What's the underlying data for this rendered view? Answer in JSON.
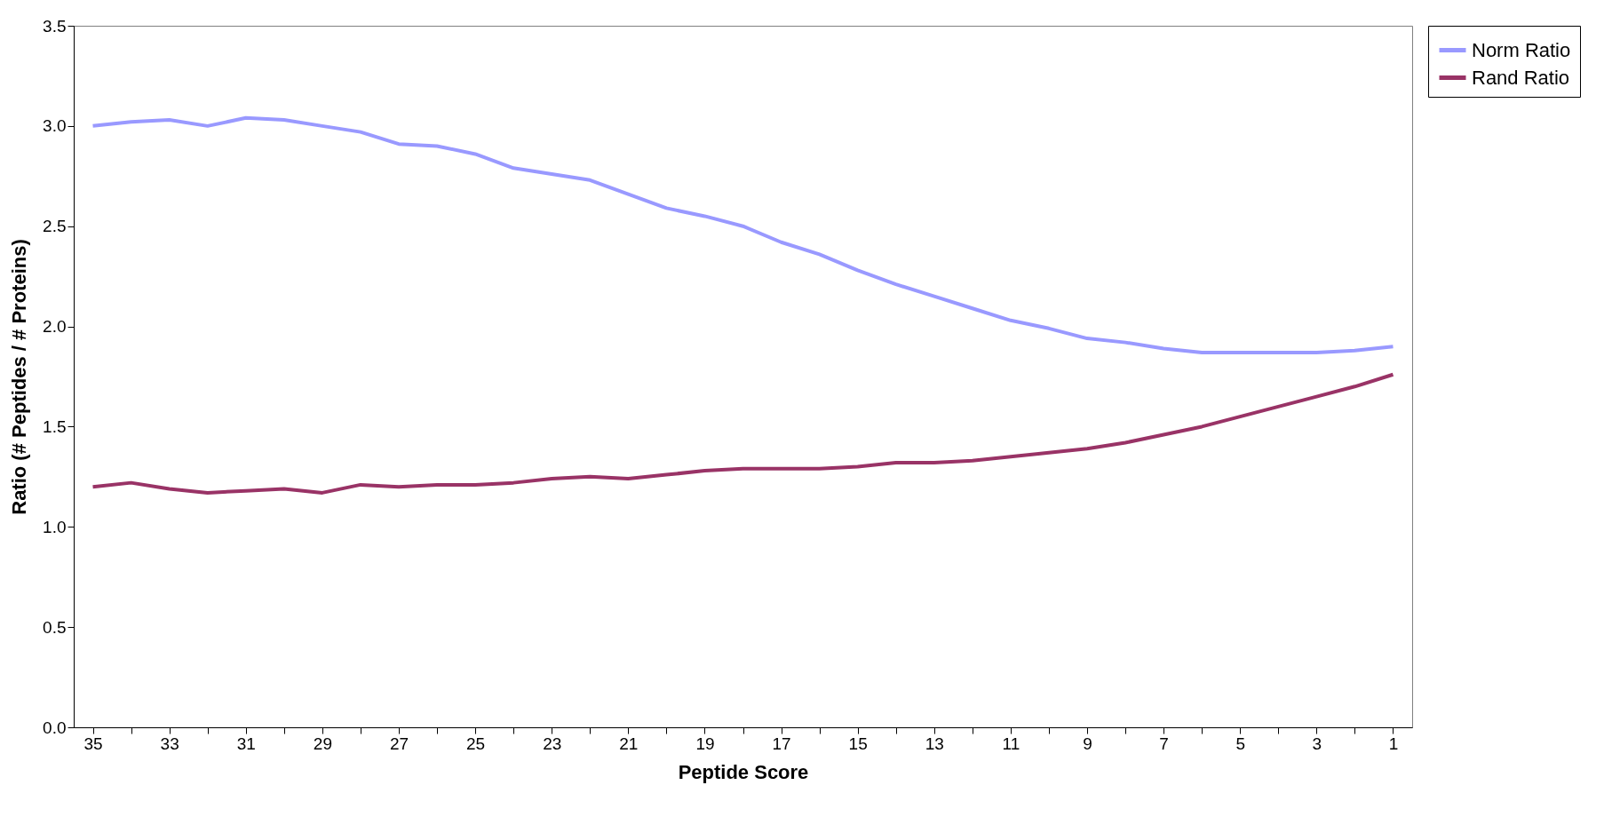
{
  "chart_data": {
    "type": "line",
    "xlabel": "Peptide Score",
    "ylabel": "Ratio (# Peptides / # Proteins)",
    "categories": [
      "35",
      null,
      "33",
      null,
      "31",
      null,
      "29",
      null,
      "27",
      null,
      "25",
      null,
      "23",
      null,
      "21",
      null,
      "19",
      null,
      "17",
      null,
      "15",
      null,
      "13",
      null,
      "11",
      null,
      "9",
      null,
      "7",
      null,
      "5",
      null,
      "3",
      null,
      "1"
    ],
    "series": [
      {
        "name": "Norm Ratio",
        "color": "#9999ff",
        "values": [
          3.0,
          3.02,
          3.03,
          3.0,
          3.04,
          3.03,
          3.0,
          2.97,
          2.91,
          2.9,
          2.86,
          2.79,
          2.76,
          2.73,
          2.66,
          2.59,
          2.55,
          2.5,
          2.42,
          2.36,
          2.28,
          2.21,
          2.15,
          2.09,
          2.03,
          1.99,
          1.94,
          1.92,
          1.89,
          1.87,
          1.87,
          1.87,
          1.87,
          1.88,
          1.9
        ]
      },
      {
        "name": "Rand Ratio",
        "color": "#993366",
        "values": [
          1.2,
          1.22,
          1.19,
          1.17,
          1.18,
          1.19,
          1.17,
          1.21,
          1.2,
          1.21,
          1.21,
          1.22,
          1.24,
          1.25,
          1.24,
          1.26,
          1.28,
          1.29,
          1.29,
          1.29,
          1.3,
          1.32,
          1.32,
          1.33,
          1.35,
          1.37,
          1.39,
          1.42,
          1.46,
          1.5,
          1.55,
          1.6,
          1.65,
          1.7,
          1.76
        ]
      }
    ],
    "ylim": [
      0,
      3.5
    ],
    "yticks": [
      {
        "value": 0,
        "label": "0.0"
      },
      {
        "value": 0.5,
        "label": "0.5"
      },
      {
        "value": 1,
        "label": "1.0"
      },
      {
        "value": 1.5,
        "label": "1.5"
      },
      {
        "value": 2,
        "label": "2.0"
      },
      {
        "value": 2.5,
        "label": "2.5"
      },
      {
        "value": 3,
        "label": "3.0"
      },
      {
        "value": 3.5,
        "label": "3.5"
      }
    ],
    "grid": false,
    "legend": "right",
    "marker": "none",
    "line_style": "solid"
  }
}
